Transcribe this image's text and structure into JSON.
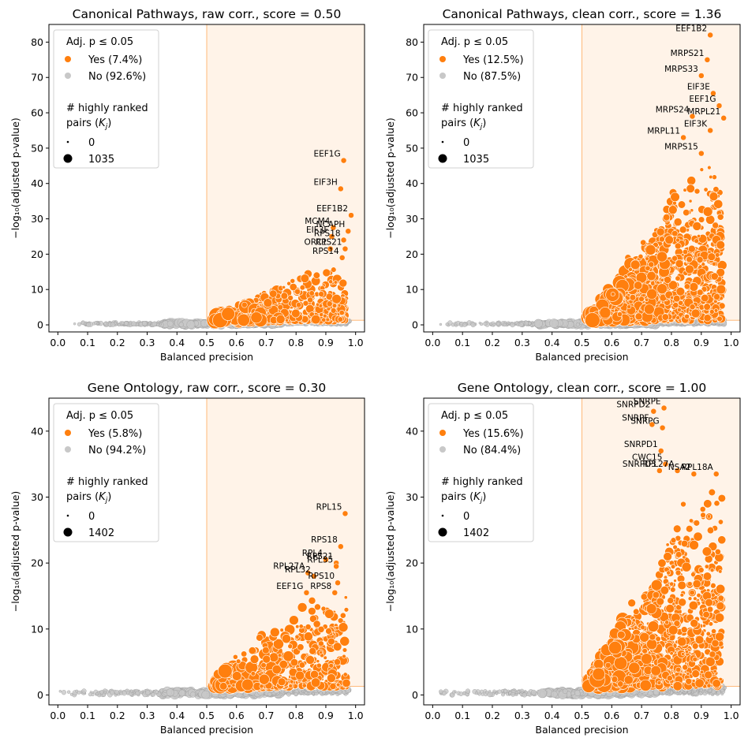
{
  "figure": {
    "colors": {
      "significant": "#ff7f0e",
      "nonsignificant": "#c8c8c8",
      "nonsignificant_edge": "#9a9a9a",
      "region_fill": "#fff3e8",
      "region_edge": "#ffb878"
    }
  },
  "chart_data": [
    {
      "type": "scatter",
      "title": "Canonical Pathways, raw corr., score = 0.50",
      "xlabel": "Balanced precision",
      "ylabel": "−log₁₀(adjusted p-value)",
      "xlim": [
        -0.03,
        1.03
      ],
      "ylim": [
        -2,
        85
      ],
      "xticks": [
        0.0,
        0.1,
        0.2,
        0.3,
        0.4,
        0.5,
        0.6,
        0.7,
        0.8,
        0.9,
        1.0
      ],
      "xtick_labels": [
        "0.0",
        "0.1",
        "0.2",
        "0.3",
        "0.4",
        "0.5",
        "0.6",
        "0.7",
        "0.8",
        "0.9",
        "1.0"
      ],
      "yticks": [
        0,
        10,
        20,
        30,
        40,
        50,
        60,
        70,
        80
      ],
      "ytick_labels": [
        "0",
        "10",
        "20",
        "30",
        "40",
        "50",
        "60",
        "70",
        "80"
      ],
      "highlight_region": {
        "x": [
          0.5,
          1.03
        ],
        "y": [
          1.3,
          85
        ]
      },
      "legend": {
        "title": "Adj. p ≤ 0.05",
        "yes": "Yes (7.4%)",
        "no": "No (92.6%)",
        "size_title": "# highly ranked",
        "size_title2": "pairs (",
        "size_var": "K",
        "size_sub": "j",
        "size_min": "0",
        "size_max": "1035"
      },
      "labeled_points": [
        {
          "gene": "EEF1G",
          "x": 0.96,
          "y": 46.5,
          "label": "EEF1G"
        },
        {
          "gene": "EIF3H",
          "x": 0.95,
          "y": 38.5,
          "label": "EIF3H"
        },
        {
          "gene": "EEF1B2",
          "x": 0.985,
          "y": 31,
          "label": "EEF1B2"
        },
        {
          "gene": "MCM4",
          "x": 0.925,
          "y": 27.5,
          "label": "MCM4"
        },
        {
          "gene": "EIF3F",
          "x": 0.92,
          "y": 25,
          "label": "EIF3F"
        },
        {
          "gene": "NCAPH",
          "x": 0.975,
          "y": 26.5,
          "label": "NCAPH"
        },
        {
          "gene": "RPS18",
          "x": 0.96,
          "y": 24,
          "label": "RPS18"
        },
        {
          "gene": "RPS21",
          "x": 0.965,
          "y": 21.5,
          "label": "RPS21"
        },
        {
          "gene": "ORC1",
          "x": 0.915,
          "y": 21.5,
          "label": "ORC1"
        },
        {
          "gene": "RPS14",
          "x": 0.955,
          "y": 19,
          "label": "RPS14"
        }
      ],
      "cloud": {
        "significant_peak_y": 14,
        "significant_fraction": 0.074
      }
    },
    {
      "type": "scatter",
      "title": "Canonical Pathways, clean corr., score = 1.36",
      "xlabel": "Balanced precision",
      "ylabel": "−log₁₀(adjusted p-value)",
      "xlim": [
        -0.03,
        1.03
      ],
      "ylim": [
        -2,
        85
      ],
      "xticks": [
        0.0,
        0.1,
        0.2,
        0.3,
        0.4,
        0.5,
        0.6,
        0.7,
        0.8,
        0.9,
        1.0
      ],
      "xtick_labels": [
        "0.0",
        "0.1",
        "0.2",
        "0.3",
        "0.4",
        "0.5",
        "0.6",
        "0.7",
        "0.8",
        "0.9",
        "1.0"
      ],
      "yticks": [
        0,
        10,
        20,
        30,
        40,
        50,
        60,
        70,
        80
      ],
      "ytick_labels": [
        "0",
        "10",
        "20",
        "30",
        "40",
        "50",
        "60",
        "70",
        "80"
      ],
      "highlight_region": {
        "x": [
          0.5,
          1.03
        ],
        "y": [
          1.3,
          85
        ]
      },
      "legend": {
        "title": "Adj. p ≤ 0.05",
        "yes": "Yes (12.5%)",
        "no": "No (87.5%)",
        "size_title": "# highly ranked",
        "size_title2": "pairs (",
        "size_var": "K",
        "size_sub": "j",
        "size_min": "0",
        "size_max": "1035"
      },
      "labeled_points": [
        {
          "gene": "EEF1B2",
          "x": 0.93,
          "y": 82,
          "label": "EEF1B2"
        },
        {
          "gene": "MRPS21",
          "x": 0.92,
          "y": 75,
          "label": "MRPS21"
        },
        {
          "gene": "MRPS33",
          "x": 0.9,
          "y": 70.5,
          "label": "MRPS33"
        },
        {
          "gene": "EIF3E",
          "x": 0.94,
          "y": 65.5,
          "label": "EIF3E"
        },
        {
          "gene": "EEF1G",
          "x": 0.96,
          "y": 62,
          "label": "EEF1G"
        },
        {
          "gene": "MRPS24",
          "x": 0.87,
          "y": 59,
          "label": "MRPS24"
        },
        {
          "gene": "EIF3K",
          "x": 0.93,
          "y": 55,
          "label": "EIF3K"
        },
        {
          "gene": "MRPL21",
          "x": 0.975,
          "y": 58.5,
          "label": "MRPL21"
        },
        {
          "gene": "MRPL11",
          "x": 0.84,
          "y": 53,
          "label": "MRPL11"
        },
        {
          "gene": "MRPS15",
          "x": 0.9,
          "y": 48.5,
          "label": "MRPS15"
        }
      ],
      "cloud": {
        "significant_peak_y": 44,
        "significant_fraction": 0.125
      }
    },
    {
      "type": "scatter",
      "title": "Gene Ontology, raw corr., score = 0.30",
      "xlabel": "Balanced precision",
      "ylabel": "−log₁₀(adjusted p-value)",
      "xlim": [
        -0.03,
        1.03
      ],
      "ylim": [
        -1.5,
        45
      ],
      "xticks": [
        0.0,
        0.1,
        0.2,
        0.3,
        0.4,
        0.5,
        0.6,
        0.7,
        0.8,
        0.9,
        1.0
      ],
      "xtick_labels": [
        "0.0",
        "0.1",
        "0.2",
        "0.3",
        "0.4",
        "0.5",
        "0.6",
        "0.7",
        "0.8",
        "0.9",
        "1.0"
      ],
      "yticks": [
        0,
        10,
        20,
        30,
        40
      ],
      "ytick_labels": [
        "0",
        "10",
        "20",
        "30",
        "40"
      ],
      "highlight_region": {
        "x": [
          0.5,
          1.03
        ],
        "y": [
          1.3,
          45
        ]
      },
      "legend": {
        "title": "Adj. p ≤ 0.05",
        "yes": "Yes (5.8%)",
        "no": "No (94.2%)",
        "size_title": "# highly ranked",
        "size_title2": "pairs (",
        "size_var": "K",
        "size_sub": "j",
        "size_min": "0",
        "size_max": "1402"
      },
      "labeled_points": [
        {
          "gene": "RPL15",
          "x": 0.965,
          "y": 27.5,
          "label": "RPL15"
        },
        {
          "gene": "RPS18",
          "x": 0.95,
          "y": 22.5,
          "label": "RPS18"
        },
        {
          "gene": "RPL4",
          "x": 0.9,
          "y": 20.5,
          "label": "RPL4"
        },
        {
          "gene": "RPL27A",
          "x": 0.84,
          "y": 18.5,
          "label": "RPL27A"
        },
        {
          "gene": "RPL32",
          "x": 0.86,
          "y": 18,
          "label": "RPL32"
        },
        {
          "gene": "RPS21",
          "x": 0.935,
          "y": 20,
          "label": "RPS21"
        },
        {
          "gene": "RPL35",
          "x": 0.935,
          "y": 19.5,
          "label": "RPL35"
        },
        {
          "gene": "EEF1G",
          "x": 0.835,
          "y": 15.5,
          "label": "EEF1G"
        },
        {
          "gene": "RPS10",
          "x": 0.94,
          "y": 17,
          "label": "RPS10"
        },
        {
          "gene": "RPS8",
          "x": 0.93,
          "y": 15.5,
          "label": "RPS8"
        }
      ],
      "cloud": {
        "significant_peak_y": 14,
        "significant_fraction": 0.058
      }
    },
    {
      "type": "scatter",
      "title": "Gene Ontology, clean corr., score = 1.00",
      "xlabel": "Balanced precision",
      "ylabel": "−log₁₀(adjusted p-value)",
      "xlim": [
        -0.03,
        1.03
      ],
      "ylim": [
        -1.5,
        45
      ],
      "xticks": [
        0.0,
        0.1,
        0.2,
        0.3,
        0.4,
        0.5,
        0.6,
        0.7,
        0.8,
        0.9,
        1.0
      ],
      "xtick_labels": [
        "0.0",
        "0.1",
        "0.2",
        "0.3",
        "0.4",
        "0.5",
        "0.6",
        "0.7",
        "0.8",
        "0.9",
        "1.0"
      ],
      "yticks": [
        0,
        10,
        20,
        30,
        40
      ],
      "ytick_labels": [
        "0",
        "10",
        "20",
        "30",
        "40"
      ],
      "highlight_region": {
        "x": [
          0.5,
          1.03
        ],
        "y": [
          1.3,
          45
        ]
      },
      "legend": {
        "title": "Adj. p ≤ 0.05",
        "yes": "Yes (15.6%)",
        "no": "No (84.4%)",
        "size_title": "# highly ranked",
        "size_title2": "pairs (",
        "size_var": "K",
        "size_sub": "j",
        "size_min": "0",
        "size_max": "1402"
      },
      "labeled_points": [
        {
          "gene": "SNRPD2",
          "x": 0.74,
          "y": 43,
          "label": "SNRPD2"
        },
        {
          "gene": "SNRPE",
          "x": 0.775,
          "y": 43.5,
          "label": "SNRPE"
        },
        {
          "gene": "SNRPF",
          "x": 0.735,
          "y": 41,
          "label": "SNRPF"
        },
        {
          "gene": "SNRPG",
          "x": 0.77,
          "y": 40.5,
          "label": "SNRPG"
        },
        {
          "gene": "SNRPD1",
          "x": 0.765,
          "y": 37,
          "label": "SNRPD1"
        },
        {
          "gene": "CWC15",
          "x": 0.78,
          "y": 35,
          "label": "CWC15"
        },
        {
          "gene": "SNRPD3",
          "x": 0.76,
          "y": 34,
          "label": "SNRPD3"
        },
        {
          "gene": "RPL27A",
          "x": 0.82,
          "y": 34,
          "label": "RPL27A"
        },
        {
          "gene": "RPL18A",
          "x": 0.95,
          "y": 33.5,
          "label": "RPL18A"
        },
        {
          "gene": "NSA2",
          "x": 0.875,
          "y": 33.5,
          "label": "NSA2"
        }
      ],
      "cloud": {
        "significant_peak_y": 30,
        "significant_fraction": 0.156
      }
    }
  ]
}
